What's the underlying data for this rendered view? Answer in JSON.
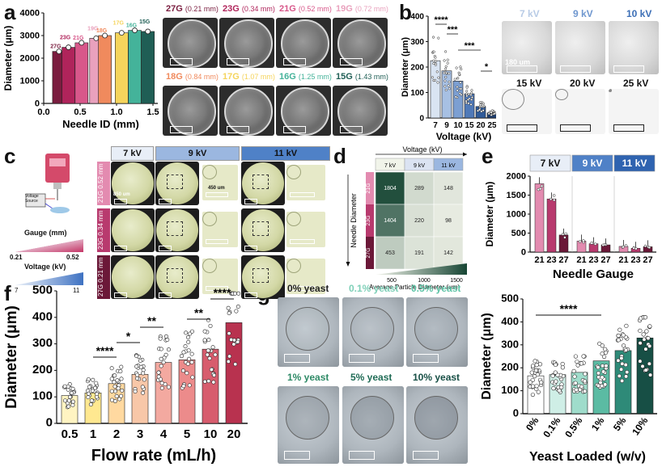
{
  "panels": {
    "a": "a",
    "b": "b",
    "c": "c",
    "d": "d",
    "e": "e",
    "f": "f",
    "g": "g"
  },
  "panel_a": {
    "gauge_labels_row1": [
      {
        "gauge": "27G",
        "mm": "(0.21 mm)",
        "color": "#7a1d3f"
      },
      {
        "gauge": "23G",
        "mm": "(0.34 mm)",
        "color": "#b0245b"
      },
      {
        "gauge": "21G",
        "mm": "(0.52 mm)",
        "color": "#d8578a"
      },
      {
        "gauge": "19G",
        "mm": "(0.72 mm)",
        "color": "#e9a1bd"
      }
    ],
    "gauge_labels_row2": [
      {
        "gauge": "18G",
        "mm": "(0.84 mm)",
        "color": "#f08a5d"
      },
      {
        "gauge": "17G",
        "mm": "(1.07 mm)",
        "color": "#f5d45c"
      },
      {
        "gauge": "16G",
        "mm": "(1.25 mm)",
        "color": "#44b39a"
      },
      {
        "gauge": "15G",
        "mm": "(1.43 mm)",
        "color": "#1f5e55"
      }
    ]
  },
  "panel_b_images": {
    "row1": [
      "7 kV",
      "9 kV",
      "10 kV"
    ],
    "row1_colors": [
      "#b8cbe6",
      "#6f97cf",
      "#3d6fb6"
    ],
    "row2": [
      "15 kV",
      "20 kV",
      "25 kV"
    ],
    "scale_text": "180 um"
  },
  "panel_c": {
    "columns": [
      "7 kV",
      "9 kV",
      "11 kV"
    ],
    "rows": [
      {
        "label": "21G\n0.52 mm",
        "color": "#e38bb0"
      },
      {
        "label": "23G\n0.34 mm",
        "color": "#b83a6e"
      },
      {
        "label": "27G\n0.21 mm",
        "color": "#6b1838"
      }
    ],
    "scale_main": "850 um",
    "scale_zoom": "450 um",
    "voltage_source": "Voltage\nSource",
    "gauge_title": "Gauge (mm)",
    "gauge_min": "0.21",
    "gauge_max": "0.52",
    "voltage_title": "Voltage (kV)",
    "voltage_min": "7",
    "voltage_max": "11",
    "voltage_unit": "(kV)"
  },
  "chart_data": [
    {
      "panel": "a",
      "type": "bar",
      "xlabel": "Needle ID (mm)",
      "ylabel": "Diameter (μm)",
      "xlim": [
        0,
        1.5
      ],
      "ylim": [
        0,
        4000
      ],
      "xticks": [
        "0.0",
        "0.5",
        "1.0",
        "1.5"
      ],
      "yticks": [
        "0",
        "1000",
        "2000",
        "3000",
        "4000"
      ],
      "x": [
        0.21,
        0.34,
        0.52,
        0.72,
        0.84,
        1.07,
        1.25,
        1.43
      ],
      "values": [
        2300,
        2480,
        2680,
        2880,
        3000,
        3120,
        3230,
        3180
      ],
      "labels": [
        "27G",
        "23G",
        "21G",
        "19G",
        "18G",
        "17G",
        "16G",
        "15G"
      ],
      "colors": [
        "#7a1d3f",
        "#b0245b",
        "#d8578a",
        "#e9a1bd",
        "#f08a5d",
        "#f5d45c",
        "#44b39a",
        "#1f5e55"
      ]
    },
    {
      "panel": "b",
      "type": "bar",
      "categories": [
        "7",
        "9",
        "10",
        "15",
        "20",
        "25"
      ],
      "values": [
        225,
        185,
        145,
        95,
        45,
        20
      ],
      "xlabel": "Voltage (kV)",
      "ylabel": "Diameter (μm)",
      "ylim": [
        0,
        400
      ],
      "yticks": [
        "0",
        "100",
        "200",
        "300",
        "400"
      ],
      "colors": [
        "#d9e4f2",
        "#a7c0e3",
        "#7c9fd2",
        "#4f79b8",
        "#2f5a99",
        "#1e3e6f"
      ],
      "significance": [
        "****",
        "***",
        "***",
        "*"
      ]
    },
    {
      "panel": "d",
      "type": "heatmap",
      "title": "Voltage (kV)",
      "columns": [
        "7 kV",
        "9 kV",
        "11 kV"
      ],
      "rows": [
        "21G",
        "23G",
        "27G"
      ],
      "values": [
        [
          1804,
          289,
          148
        ],
        [
          1404,
          220,
          98
        ],
        [
          453,
          191,
          142
        ]
      ],
      "ylabel": "Needle Diameter",
      "colorbar_label": "Average Particle Diameter (μm)",
      "colorbar_ticks": [
        "500",
        "1000",
        "1500"
      ]
    },
    {
      "panel": "e",
      "type": "bar",
      "groups": [
        "7 kV",
        "9 kV",
        "11 kV"
      ],
      "categories": [
        "21",
        "23",
        "27",
        "21",
        "23",
        "27",
        "21",
        "23",
        "27"
      ],
      "values": [
        1800,
        1400,
        450,
        290,
        220,
        190,
        150,
        100,
        140
      ],
      "xlabel": "Needle Gauge",
      "ylabel": "Diameter (μm)",
      "ylim": [
        0,
        2000
      ],
      "yticks": [
        "0",
        "500",
        "1000",
        "1500",
        "2000"
      ],
      "colors": [
        "#e38bb0",
        "#b83a6e",
        "#6b1838"
      ]
    },
    {
      "panel": "f",
      "type": "bar",
      "categories": [
        "0.5",
        "1",
        "2",
        "3",
        "4",
        "5",
        "10",
        "20"
      ],
      "values": [
        105,
        115,
        150,
        185,
        230,
        240,
        280,
        380
      ],
      "xlabel": "Flow rate (mL/h)",
      "ylabel": "Diameter (μm)",
      "ylim": [
        0,
        500
      ],
      "yticks": [
        "0",
        "100",
        "200",
        "300",
        "400",
        "500"
      ],
      "colors": [
        "#fff4c2",
        "#ffe890",
        "#ffd9a0",
        "#f8c7a8",
        "#f3a9a0",
        "#ec8b8b",
        "#d75c6d",
        "#b8324f"
      ],
      "significance": [
        "****",
        "*",
        "**",
        "**",
        "****"
      ]
    },
    {
      "panel": "g",
      "type": "bar",
      "categories": [
        "0%",
        "0.1%",
        "0.5%",
        "1%",
        "5%",
        "10%"
      ],
      "values": [
        165,
        170,
        180,
        230,
        275,
        330
      ],
      "xlabel": "Yeast Loaded (w/v)",
      "ylabel": "Diameter (μm)",
      "ylim": [
        0,
        500
      ],
      "yticks": [
        "0",
        "100",
        "200",
        "300",
        "400",
        "500"
      ],
      "colors": [
        "#ffffff",
        "#cfeee6",
        "#9fdccb",
        "#5bbba3",
        "#2e8a78",
        "#174f45"
      ],
      "significance": [
        "****"
      ]
    }
  ],
  "panel_g_images": [
    {
      "label": "0% yeast",
      "color": "#222222"
    },
    {
      "label": "0.1% yeast",
      "color": "#7fd0b8"
    },
    {
      "label": "0.5% yeast",
      "color": "#5cc3a5"
    },
    {
      "label": "1% yeast",
      "color": "#2e8a66"
    },
    {
      "label": "5% yeast",
      "color": "#1f6b55"
    },
    {
      "label": "10% yeast",
      "color": "#174f45"
    }
  ]
}
